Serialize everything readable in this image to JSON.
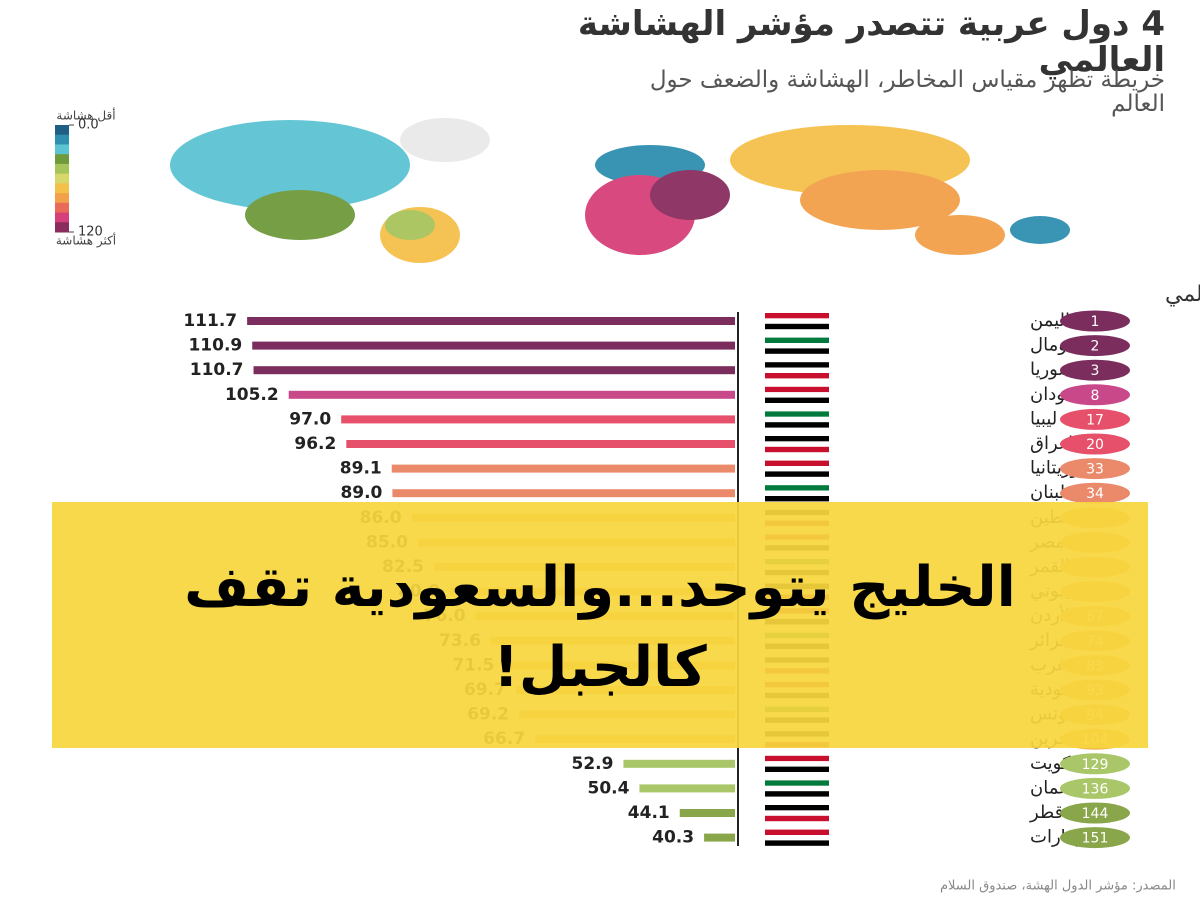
{
  "title": "4 دول عربية تتصدر مؤشر الهشاشة العالمي",
  "subtitle": "خريطة تظهر مقياس المخاطر، الهشاشة والضعف حول العالم",
  "map_legend": {
    "low_label": "أقل هشاشة",
    "high_label": "أكثر هشاشة",
    "ticks": [
      {
        "value": 0,
        "label": "0.0"
      },
      120
    ],
    "colors": [
      "#1f5f86",
      "#2f8fb0",
      "#5cc3d3",
      "#6f9a3c",
      "#a7c45a",
      "#d8d86a",
      "#f5c04a",
      "#f2a04a",
      "#ea6a5a",
      "#d6407a",
      "#8a2d5e"
    ]
  },
  "chart_data": {
    "type": "bar",
    "orientation": "horizontal",
    "title": "ترتيب الدول العربية تحت مؤشر الهشاشة العالمي",
    "categories": [
      "اليمن",
      "الصومال",
      "سوريا",
      "السودان",
      "ليبيا",
      "العراق",
      "موريتانيا",
      "لبنان",
      "فلسطين",
      "مصر",
      "القمر",
      "جيبوتي",
      "الأردن",
      "الجزائر",
      "المغرب",
      "السعودية",
      "تونس",
      "البحرين",
      "الكويت",
      "عمان",
      "قطر",
      "الإمارات"
    ],
    "ranks": [
      1,
      2,
      3,
      8,
      17,
      20,
      33,
      34,
      null,
      null,
      null,
      null,
      67,
      74,
      83,
      93,
      94,
      104,
      129,
      136,
      144,
      151
    ],
    "values": [
      111.7,
      110.9,
      110.7,
      105.2,
      97,
      96.2,
      89.1,
      89,
      86,
      85,
      82.5,
      80,
      76,
      73.6,
      71.5,
      69.7,
      69.2,
      66.7,
      52.9,
      50.4,
      44.1,
      40.3
    ],
    "value_labels": [
      "111.7",
      "110.9",
      "110.7",
      "105.2",
      "97.0",
      "96.2",
      "89.1",
      "89.0",
      "86.0",
      "85.0",
      "82.5",
      "80.0",
      "76.0",
      "73.6",
      "71.5",
      "69.7",
      "69.2",
      "66.7",
      "52.9",
      "50.4",
      "44.1",
      "40.3"
    ],
    "colors": [
      "#7b2d5e",
      "#7b2d5e",
      "#7b2d5e",
      "#c9488a",
      "#e6506a",
      "#e6506a",
      "#ea8a6a",
      "#ea8a6a",
      "#efa456",
      "#efa456",
      "#efa456",
      "#efa456",
      "#f2bb4a",
      "#f2bb4a",
      "#f2bb4a",
      "#f2bb4a",
      "#f2bb4a",
      "#f2bb4a",
      "#a9c768",
      "#a9c768",
      "#8aa64a",
      "#8aa64a"
    ],
    "xlim": [
      35,
      115
    ]
  },
  "banner": {
    "lines": [
      "الخليج يتوحد...والسعودية تقف",
      "كالجبل!"
    ]
  },
  "source": "المصدر: مؤشر الدول الهشة، صندوق السلام"
}
